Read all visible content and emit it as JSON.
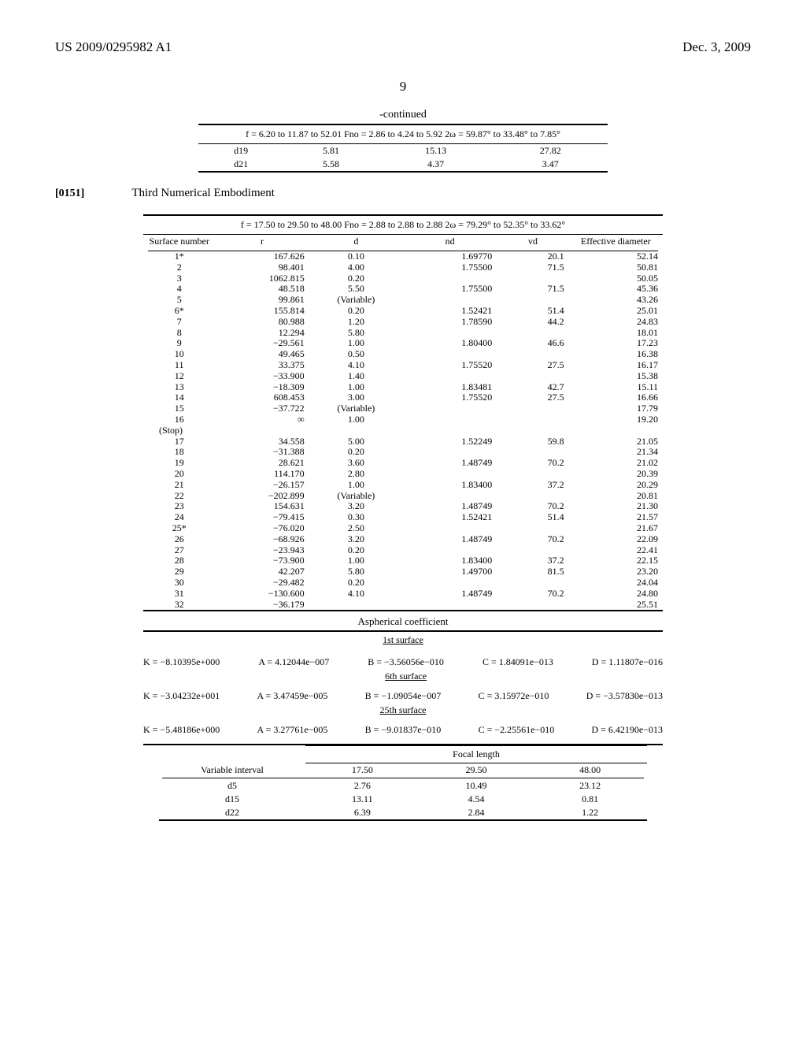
{
  "header": {
    "left": "US 2009/0295982 A1",
    "right": "Dec. 3, 2009"
  },
  "page_number": "9",
  "continued_label": "-continued",
  "top_table_caption": "f = 6.20 to 11.87 to 52.01 Fno = 2.86 to 4.24 to 5.92 2ω = 59.87° to 33.48° to 7.85°",
  "top_rows": [
    {
      "c1": "d19",
      "c2": "5.81",
      "c3": "15.13",
      "c4": "27.82"
    },
    {
      "c1": "d21",
      "c2": "5.58",
      "c3": "4.37",
      "c4": "3.47"
    }
  ],
  "para_num": "[0151]",
  "embodiment_label": "Third Numerical Embodiment",
  "main_caption": "f = 17.50 to 29.50 to 48.00 Fno = 2.88 to 2.88 to 2.88 2ω = 79.29° to 52.35° to 33.62°",
  "main_headers": {
    "h1": "Surface number",
    "h2": "r",
    "h3": "d",
    "h4": "nd",
    "h5": "vd",
    "h6": "Effective diameter"
  },
  "surfaces": [
    {
      "n": "1*",
      "r": "167.626",
      "d": "0.10",
      "nd": "1.69770",
      "vd": "20.1",
      "eff": "52.14"
    },
    {
      "n": "2",
      "r": "98.401",
      "d": "4.00",
      "nd": "1.75500",
      "vd": "71.5",
      "eff": "50.81"
    },
    {
      "n": "3",
      "r": "1062.815",
      "d": "0.20",
      "nd": "",
      "vd": "",
      "eff": "50.05"
    },
    {
      "n": "4",
      "r": "48.518",
      "d": "5.50",
      "nd": "1.75500",
      "vd": "71.5",
      "eff": "45.36"
    },
    {
      "n": "5",
      "r": "99.861",
      "d": "(Variable)",
      "nd": "",
      "vd": "",
      "eff": "43.26"
    },
    {
      "n": "6*",
      "r": "155.814",
      "d": "0.20",
      "nd": "1.52421",
      "vd": "51.4",
      "eff": "25.01"
    },
    {
      "n": "7",
      "r": "80.988",
      "d": "1.20",
      "nd": "1.78590",
      "vd": "44.2",
      "eff": "24.83"
    },
    {
      "n": "8",
      "r": "12.294",
      "d": "5.80",
      "nd": "",
      "vd": "",
      "eff": "18.01"
    },
    {
      "n": "9",
      "r": "−29.561",
      "d": "1.00",
      "nd": "1.80400",
      "vd": "46.6",
      "eff": "17.23"
    },
    {
      "n": "10",
      "r": "49.465",
      "d": "0.50",
      "nd": "",
      "vd": "",
      "eff": "16.38"
    },
    {
      "n": "11",
      "r": "33.375",
      "d": "4.10",
      "nd": "1.75520",
      "vd": "27.5",
      "eff": "16.17"
    },
    {
      "n": "12",
      "r": "−33.900",
      "d": "1.40",
      "nd": "",
      "vd": "",
      "eff": "15.38"
    },
    {
      "n": "13",
      "r": "−18.309",
      "d": "1.00",
      "nd": "1.83481",
      "vd": "42.7",
      "eff": "15.11"
    },
    {
      "n": "14",
      "r": "608.453",
      "d": "3.00",
      "nd": "1.75520",
      "vd": "27.5",
      "eff": "16.66"
    },
    {
      "n": "15",
      "r": "−37.722",
      "d": "(Variable)",
      "nd": "",
      "vd": "",
      "eff": "17.79"
    },
    {
      "n": "16",
      "r": "∞",
      "d": "1.00",
      "nd": "",
      "vd": "",
      "eff": "19.20"
    },
    {
      "n": "(Stop)",
      "r": "",
      "d": "",
      "nd": "",
      "vd": "",
      "eff": "",
      "stop": true
    },
    {
      "n": "17",
      "r": "34.558",
      "d": "5.00",
      "nd": "1.52249",
      "vd": "59.8",
      "eff": "21.05"
    },
    {
      "n": "18",
      "r": "−31.388",
      "d": "0.20",
      "nd": "",
      "vd": "",
      "eff": "21.34"
    },
    {
      "n": "19",
      "r": "28.621",
      "d": "3.60",
      "nd": "1.48749",
      "vd": "70.2",
      "eff": "21.02"
    },
    {
      "n": "20",
      "r": "114.170",
      "d": "2.80",
      "nd": "",
      "vd": "",
      "eff": "20.39"
    },
    {
      "n": "21",
      "r": "−26.157",
      "d": "1.00",
      "nd": "1.83400",
      "vd": "37.2",
      "eff": "20.29"
    },
    {
      "n": "22",
      "r": "−202.899",
      "d": "(Variable)",
      "nd": "",
      "vd": "",
      "eff": "20.81"
    },
    {
      "n": "23",
      "r": "154.631",
      "d": "3.20",
      "nd": "1.48749",
      "vd": "70.2",
      "eff": "21.30"
    },
    {
      "n": "24",
      "r": "−79.415",
      "d": "0.30",
      "nd": "1.52421",
      "vd": "51.4",
      "eff": "21.57"
    },
    {
      "n": "25*",
      "r": "−76.020",
      "d": "2.50",
      "nd": "",
      "vd": "",
      "eff": "21.67"
    },
    {
      "n": "26",
      "r": "−68.926",
      "d": "3.20",
      "nd": "1.48749",
      "vd": "70.2",
      "eff": "22.09"
    },
    {
      "n": "27",
      "r": "−23.943",
      "d": "0.20",
      "nd": "",
      "vd": "",
      "eff": "22.41"
    },
    {
      "n": "28",
      "r": "−73.900",
      "d": "1.00",
      "nd": "1.83400",
      "vd": "37.2",
      "eff": "22.15"
    },
    {
      "n": "29",
      "r": "42.207",
      "d": "5.80",
      "nd": "1.49700",
      "vd": "81.5",
      "eff": "23.20"
    },
    {
      "n": "30",
      "r": "−29.482",
      "d": "0.20",
      "nd": "",
      "vd": "",
      "eff": "24.04"
    },
    {
      "n": "31",
      "r": "−130.600",
      "d": "4.10",
      "nd": "1.48749",
      "vd": "70.2",
      "eff": "24.80"
    },
    {
      "n": "32",
      "r": "−36.179",
      "d": "",
      "nd": "",
      "vd": "",
      "eff": "25.51"
    }
  ],
  "asph_title": "Aspherical coefficient",
  "surf_labels": {
    "s1": "1st surface",
    "s6": "6th surface",
    "s25": "25th surface"
  },
  "coefs": [
    {
      "K": "K = −8.10395e+000",
      "A": "A = 4.12044e−007",
      "B": "B = −3.56056e−010",
      "C": "C = 1.84091e−013",
      "D": "D = 1.11807e−016",
      "under": "6th surface"
    },
    {
      "K": "K = −3.04232e+001",
      "A": "A = 3.47459e−005",
      "B": "B = −1.09054e−007",
      "C": "C = 3.15972e−010",
      "D": "D = −3.57830e−013",
      "under": "25th surface"
    },
    {
      "K": "K = −5.48186e+000",
      "A": "A = 3.27761e−005",
      "B": "B = −9.01837e−010",
      "C": "C = −2.25561e−010",
      "D": "D = 6.42190e−013",
      "under": ""
    }
  ],
  "focal": {
    "header": "Focal length",
    "var_label": "Variable interval",
    "cols": [
      "17.50",
      "29.50",
      "48.00"
    ],
    "rows": [
      {
        "n": "d5",
        "v": [
          "2.76",
          "10.49",
          "23.12"
        ]
      },
      {
        "n": "d15",
        "v": [
          "13.11",
          "4.54",
          "0.81"
        ]
      },
      {
        "n": "d22",
        "v": [
          "6.39",
          "2.84",
          "1.22"
        ]
      }
    ]
  }
}
